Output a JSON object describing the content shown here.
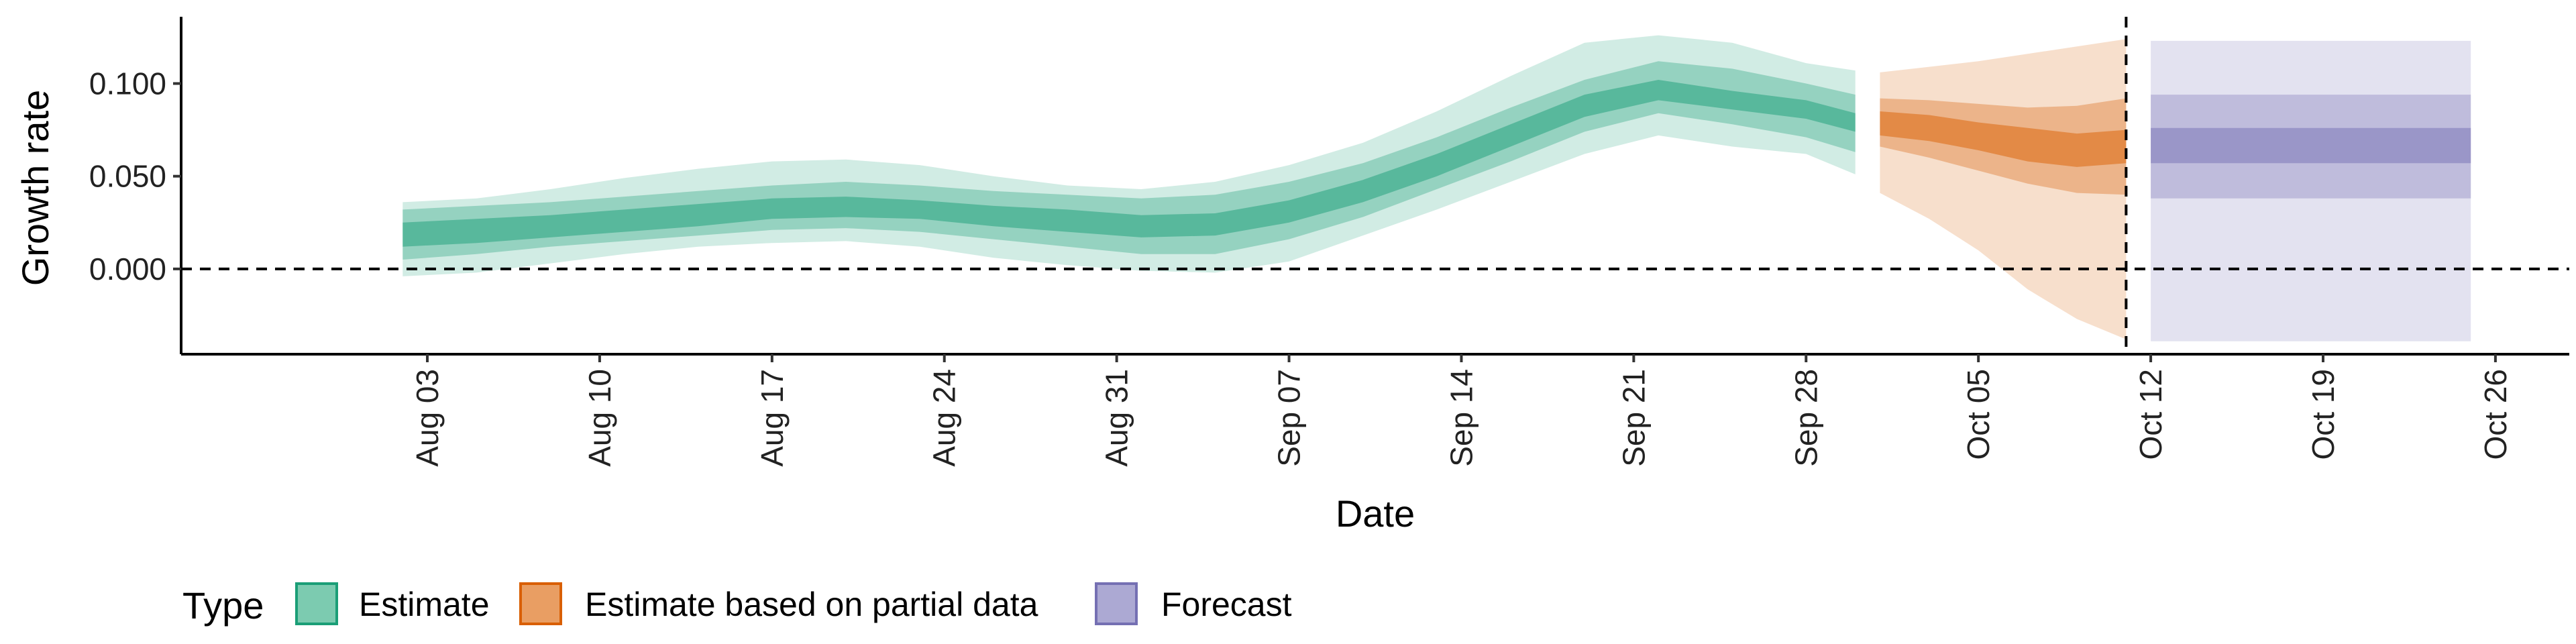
{
  "chart_data": {
    "type": "area",
    "xlabel": "Date",
    "ylabel": "Growth rate",
    "xlim": [
      "2021-07-24",
      "2021-10-29"
    ],
    "ylim": [
      -0.046,
      0.136
    ],
    "y_ticks": [
      0.0,
      0.05,
      0.1
    ],
    "y_tick_labels": [
      "0.000",
      "0.050",
      "0.100"
    ],
    "x_ticks": [
      "2021-08-03",
      "2021-08-10",
      "2021-08-17",
      "2021-08-24",
      "2021-08-31",
      "2021-09-07",
      "2021-09-14",
      "2021-09-21",
      "2021-09-28",
      "2021-10-05",
      "2021-10-12",
      "2021-10-19",
      "2021-10-26"
    ],
    "x_tick_labels": [
      "Aug 03",
      "Aug 10",
      "Aug 17",
      "Aug 24",
      "Aug 31",
      "Sep 07",
      "Sep 14",
      "Sep 21",
      "Sep 28",
      "Oct 05",
      "Oct 12",
      "Oct 19",
      "Oct 26"
    ],
    "reference_line_y": 0.0,
    "reference_line_x": "2021-10-11",
    "grid": false,
    "legend": {
      "title": "Type",
      "placement": "bottom",
      "entries": [
        "Estimate",
        "Estimate based on partial data",
        "Forecast"
      ]
    },
    "colors": {
      "Estimate": "#1b9e77",
      "Estimate based on partial data": "#d95f02",
      "Forecast": "#7570b3"
    },
    "series": [
      {
        "name": "Estimate",
        "x": [
          "2021-08-02",
          "2021-08-05",
          "2021-08-08",
          "2021-08-11",
          "2021-08-14",
          "2021-08-17",
          "2021-08-20",
          "2021-08-23",
          "2021-08-26",
          "2021-08-29",
          "2021-09-01",
          "2021-09-04",
          "2021-09-07",
          "2021-09-10",
          "2021-09-13",
          "2021-09-16",
          "2021-09-19",
          "2021-09-22",
          "2021-09-25",
          "2021-09-28",
          "2021-09-30"
        ],
        "median": [
          0.019,
          0.021,
          0.023,
          0.026,
          0.029,
          0.033,
          0.034,
          0.032,
          0.028,
          0.026,
          0.023,
          0.024,
          0.031,
          0.042,
          0.056,
          0.072,
          0.088,
          0.097,
          0.091,
          0.086,
          0.079
        ],
        "lower_20": [
          0.012,
          0.014,
          0.017,
          0.02,
          0.023,
          0.027,
          0.028,
          0.027,
          0.023,
          0.02,
          0.017,
          0.018,
          0.025,
          0.036,
          0.05,
          0.066,
          0.082,
          0.091,
          0.086,
          0.081,
          0.074
        ],
        "upper_20": [
          0.025,
          0.027,
          0.029,
          0.032,
          0.035,
          0.038,
          0.039,
          0.037,
          0.034,
          0.032,
          0.029,
          0.03,
          0.037,
          0.048,
          0.062,
          0.078,
          0.094,
          0.102,
          0.096,
          0.091,
          0.084
        ],
        "lower_50": [
          0.005,
          0.008,
          0.012,
          0.015,
          0.018,
          0.021,
          0.022,
          0.02,
          0.016,
          0.012,
          0.008,
          0.008,
          0.016,
          0.028,
          0.043,
          0.058,
          0.074,
          0.084,
          0.078,
          0.071,
          0.063
        ],
        "upper_50": [
          0.032,
          0.034,
          0.036,
          0.039,
          0.042,
          0.045,
          0.047,
          0.045,
          0.042,
          0.04,
          0.038,
          0.04,
          0.047,
          0.057,
          0.071,
          0.087,
          0.102,
          0.112,
          0.108,
          0.1,
          0.094
        ],
        "lower_90": [
          -0.004,
          -0.002,
          0.003,
          0.008,
          0.012,
          0.014,
          0.015,
          0.012,
          0.006,
          0.002,
          -0.001,
          -0.002,
          0.004,
          0.018,
          0.032,
          0.047,
          0.062,
          0.072,
          0.066,
          0.062,
          0.051
        ],
        "upper_90": [
          0.036,
          0.038,
          0.043,
          0.049,
          0.054,
          0.058,
          0.059,
          0.056,
          0.05,
          0.045,
          0.043,
          0.047,
          0.056,
          0.068,
          0.085,
          0.104,
          0.122,
          0.126,
          0.122,
          0.111,
          0.107
        ]
      },
      {
        "name": "Estimate based on partial data",
        "x": [
          "2021-10-01",
          "2021-10-03",
          "2021-10-05",
          "2021-10-07",
          "2021-10-09",
          "2021-10-11"
        ],
        "median": [
          0.078,
          0.076,
          0.072,
          0.067,
          0.064,
          0.066
        ],
        "lower_20": [
          0.072,
          0.069,
          0.064,
          0.058,
          0.055,
          0.057
        ],
        "upper_20": [
          0.085,
          0.083,
          0.079,
          0.076,
          0.073,
          0.075
        ],
        "lower_50": [
          0.066,
          0.06,
          0.053,
          0.046,
          0.041,
          0.04
        ],
        "upper_50": [
          0.092,
          0.091,
          0.089,
          0.087,
          0.088,
          0.092
        ],
        "lower_90": [
          0.041,
          0.027,
          0.01,
          -0.011,
          -0.027,
          -0.038
        ],
        "upper_90": [
          0.106,
          0.109,
          0.112,
          0.116,
          0.12,
          0.124
        ]
      },
      {
        "name": "Forecast",
        "x": [
          "2021-10-12",
          "2021-10-25"
        ],
        "median": [
          0.066,
          0.066
        ],
        "lower_20": [
          0.057,
          0.057
        ],
        "upper_20": [
          0.076,
          0.076
        ],
        "lower_50": [
          0.038,
          0.038
        ],
        "upper_50": [
          0.094,
          0.094
        ],
        "lower_90": [
          -0.039,
          -0.039
        ],
        "upper_90": [
          0.123,
          0.123
        ]
      }
    ]
  }
}
